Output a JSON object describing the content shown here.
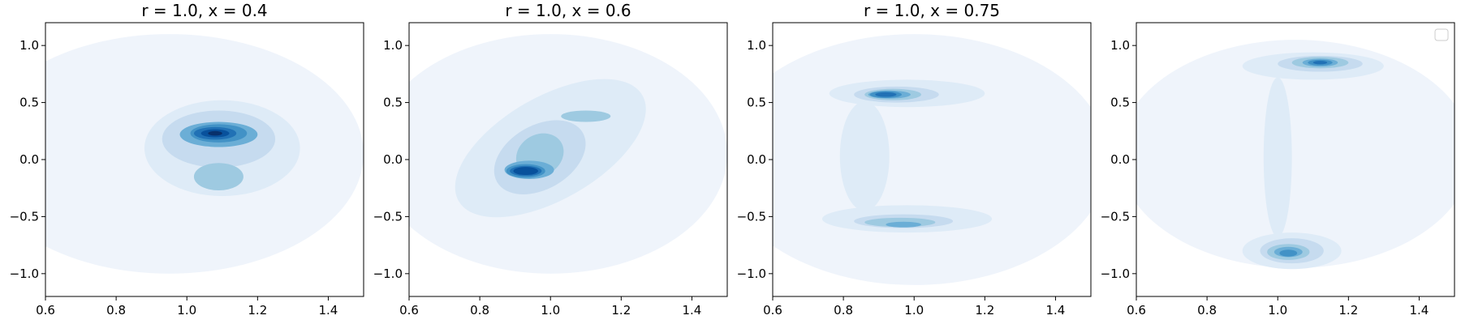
{
  "chart_data": [
    {
      "type": "contour",
      "title": "r = 1.0, x = 0.4",
      "xlabel": "",
      "ylabel": "",
      "xlim": [
        0.6,
        1.5
      ],
      "ylim": [
        -1.2,
        1.2
      ],
      "xticks": [
        0.6,
        0.8,
        1.0,
        1.2,
        1.4
      ],
      "xtick_labels": [
        "0.6",
        "0.8",
        "1.0",
        "1.2",
        "1.4"
      ],
      "yticks": [
        -1.0,
        -0.5,
        0.0,
        0.5,
        1.0
      ],
      "ytick_labels": [
        "−1.0",
        "−0.5",
        "0.0",
        "0.5",
        "1.0"
      ],
      "colormap": "Blues",
      "density_modes": [
        {
          "x": 1.08,
          "y": 0.23,
          "relative_peak": 1.0
        },
        {
          "x": 1.09,
          "y": -0.15,
          "relative_peak": 0.45
        }
      ],
      "legend": false
    },
    {
      "type": "contour",
      "title": "r = 1.0, x = 0.6",
      "xlabel": "",
      "ylabel": "",
      "xlim": [
        0.6,
        1.5
      ],
      "ylim": [
        -1.2,
        1.2
      ],
      "xticks": [
        0.6,
        0.8,
        1.0,
        1.2,
        1.4
      ],
      "xtick_labels": [
        "0.6",
        "0.8",
        "1.0",
        "1.2",
        "1.4"
      ],
      "yticks": [
        -1.0,
        -0.5,
        0.0,
        0.5,
        1.0
      ],
      "ytick_labels": [
        "−1.0",
        "−0.5",
        "0.0",
        "0.5",
        "1.0"
      ],
      "colormap": "Blues",
      "density_modes": [
        {
          "x": 0.93,
          "y": -0.1,
          "relative_peak": 1.0
        },
        {
          "x": 1.0,
          "y": 0.12,
          "relative_peak": 0.55
        },
        {
          "x": 1.1,
          "y": 0.38,
          "relative_peak": 0.4
        }
      ],
      "legend": false
    },
    {
      "type": "contour",
      "title": "r = 1.0, x = 0.75",
      "xlabel": "",
      "ylabel": "",
      "xlim": [
        0.6,
        1.5
      ],
      "ylim": [
        -1.2,
        1.2
      ],
      "xticks": [
        0.6,
        0.8,
        1.0,
        1.2,
        1.4
      ],
      "xtick_labels": [
        "0.6",
        "0.8",
        "1.0",
        "1.2",
        "1.4"
      ],
      "yticks": [
        -1.0,
        -0.5,
        0.0,
        0.5,
        1.0
      ],
      "ytick_labels": [
        "−1.0",
        "−0.5",
        "0.0",
        "0.5",
        "1.0"
      ],
      "colormap": "Blues",
      "density_modes": [
        {
          "x": 0.93,
          "y": 0.57,
          "relative_peak": 0.9
        },
        {
          "x": 0.95,
          "y": -0.52,
          "relative_peak": 0.65
        }
      ],
      "legend": false
    },
    {
      "type": "contour",
      "title": "",
      "xlabel": "",
      "ylabel": "",
      "xlim": [
        0.6,
        1.5
      ],
      "ylim": [
        -1.2,
        1.2
      ],
      "xticks": [
        0.6,
        0.8,
        1.0,
        1.2,
        1.4
      ],
      "xtick_labels": [
        "0.6",
        "0.8",
        "1.0",
        "1.2",
        "1.4"
      ],
      "yticks": [
        -1.0,
        -0.5,
        0.0,
        0.5,
        1.0
      ],
      "ytick_labels": [
        "−1.0",
        "−0.5",
        "0.0",
        "0.5",
        "1.0"
      ],
      "colormap": "Blues",
      "density_modes": [
        {
          "x": 1.12,
          "y": 0.85,
          "relative_peak": 1.0
        },
        {
          "x": 1.03,
          "y": -0.81,
          "relative_peak": 0.9
        }
      ],
      "legend": true
    }
  ],
  "colors": {
    "blues": [
      "#eff4fb",
      "#deebf7",
      "#c6dbef",
      "#9ecae1",
      "#6baed6",
      "#4292c6",
      "#2171b5",
      "#08519c",
      "#08306b"
    ]
  }
}
